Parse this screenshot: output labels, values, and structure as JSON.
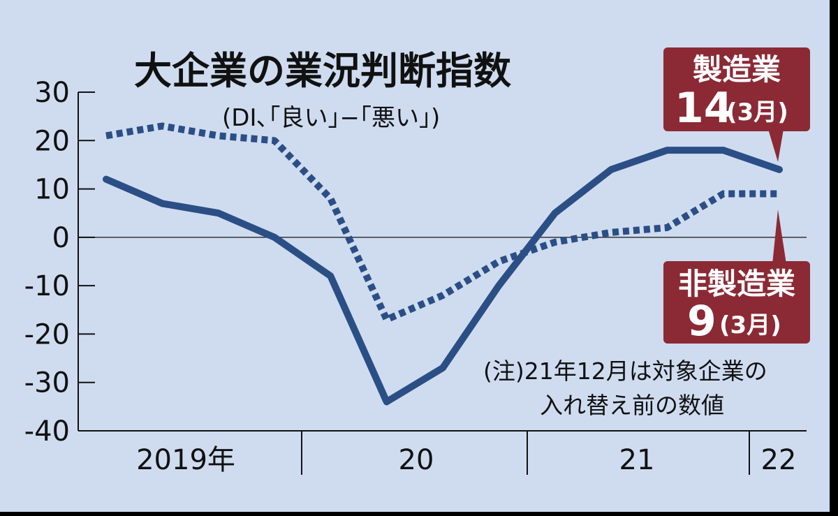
{
  "chart_data": {
    "type": "line",
    "title": "大企業の業況判断指数",
    "subtitle": "(DI､｢良い｣−｢悪い｣)",
    "ylim": [
      -40,
      30
    ],
    "yticks": [
      30,
      20,
      10,
      0,
      -10,
      -20,
      -30,
      -40
    ],
    "x": [
      "2019-03",
      "2019-06",
      "2019-09",
      "2019-12",
      "2020-03",
      "2020-06",
      "2020-09",
      "2020-12",
      "2021-03",
      "2021-06",
      "2021-09",
      "2021-12",
      "2022-03"
    ],
    "year_labels": [
      "2019年",
      "20",
      "21",
      "22"
    ],
    "series": [
      {
        "name": "製造業",
        "style": "solid",
        "color": "#2b4e85",
        "values": [
          12,
          7,
          5,
          0,
          -8,
          -34,
          -27,
          -10,
          5,
          14,
          18,
          18,
          14
        ]
      },
      {
        "name": "非製造業",
        "style": "dotted",
        "color": "#2b4e85",
        "values": [
          21,
          23,
          21,
          20,
          8,
          -17,
          -12,
          -5,
          -1,
          1,
          2,
          9,
          9
        ]
      }
    ],
    "callouts": [
      {
        "label": "製造業",
        "value": "14",
        "period": "(3月)"
      },
      {
        "label": "非製造業",
        "value": "9",
        "period": "(3月)"
      }
    ],
    "note_lines": [
      "(注)21年12月は対象企業の",
      "入れ替え前の数値"
    ],
    "callout_color": "#8b2a35"
  }
}
